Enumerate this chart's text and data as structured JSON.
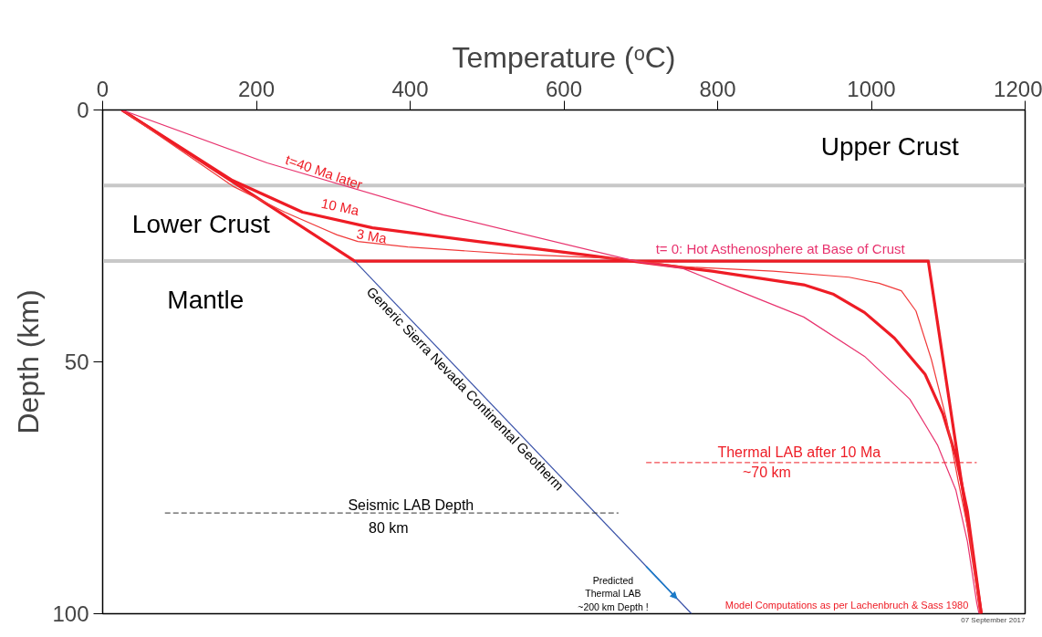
{
  "chart_data": {
    "type": "line",
    "xlabel": "Temperature (ᵒC)",
    "ylabel": "Depth (km)",
    "xlim": [
      0,
      1200
    ],
    "xticks": [
      0,
      200,
      400,
      600,
      800,
      1000,
      1200
    ],
    "ylim": [
      100,
      0
    ],
    "yticks": [
      0,
      50,
      100
    ],
    "grid": false,
    "marker": "none",
    "ref_lines": [
      {
        "axis": "y",
        "value": 15,
        "color": "#c8c8c8"
      },
      {
        "axis": "y",
        "value": 30,
        "color": "#c8c8c8"
      }
    ],
    "series": [
      {
        "color": "#ee1c25",
        "line_style": "solid",
        "x": [
          25,
          328,
          1074,
          1143
        ],
        "values": [
          0,
          30,
          30,
          100
        ]
      },
      {
        "color": "#ee1c25",
        "line_style": "solid",
        "x": [
          25,
          169,
          260,
          351,
          488,
          624,
          698,
          793,
          912,
          951,
          991,
          1030,
          1070,
          1093,
          1110,
          1125,
          1143
        ],
        "values": [
          0,
          14,
          20.3,
          23.4,
          26.1,
          28.7,
          30.2,
          32,
          34.7,
          36.6,
          40.2,
          45.3,
          52.5,
          60.3,
          68.8,
          79.7,
          100
        ]
      },
      {
        "color": "#f03a3a",
        "line_style": "solid",
        "x": [
          25,
          169,
          237,
          305,
          332,
          397,
          534,
          671,
          754,
          872,
          971,
          1010,
          1039,
          1058,
          1078,
          1098,
          1113,
          1129,
          1141
        ],
        "values": [
          0,
          15.1,
          20.3,
          24.8,
          26.1,
          27.2,
          28.6,
          29.5,
          31.1,
          32,
          33.2,
          34.4,
          35.9,
          39.9,
          49.5,
          61.6,
          73.7,
          85.7,
          100
        ]
      },
      {
        "color": "#e8336e",
        "line_style": "solid",
        "x": [
          25,
          214,
          443,
          698,
          754,
          832,
          912,
          991,
          1050,
          1086,
          1110,
          1125,
          1137,
          1140
        ],
        "values": [
          0,
          10.5,
          20.8,
          30.2,
          31.4,
          36.2,
          41.1,
          48.9,
          57.4,
          66.5,
          75.5,
          85.7,
          97.8,
          100
        ]
      },
      {
        "color": "#3a52a8",
        "line_style": "solid",
        "x": [
          328,
          766
        ],
        "values": [
          30,
          100
        ]
      },
      {
        "color": "#333333",
        "line_style": "dashed",
        "x": [
          81,
          671
        ],
        "values": [
          80,
          80
        ]
      },
      {
        "color": "#ee1c25",
        "line_style": "dashed",
        "x": [
          707,
          1137
        ],
        "values": [
          70,
          70
        ]
      }
    ],
    "annotations": [
      "Upper Crust",
      "Lower Crust",
      "Mantle",
      "t=40 Ma later",
      "10 Ma",
      "3 Ma",
      "t= 0: Hot Asthenosphere at Base of Crust",
      "Generic Sierra Nevada Continental Geotherm",
      "Seismic LAB Depth",
      "80 km",
      "Thermal LAB after 10 Ma",
      "~70 km",
      {
        "text": "Predicted\nThermal LAB\n~200 km Depth !",
        "x": 747,
        "y": 97
      },
      "Model Computations as per Lachenbruch & Sass 1980",
      "07 September 2017"
    ]
  }
}
